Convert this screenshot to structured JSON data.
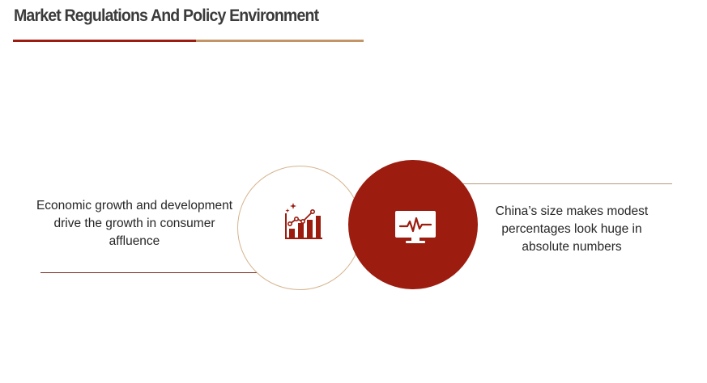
{
  "header": {
    "title": "Market Regulations And Policy Environment"
  },
  "items": [
    {
      "text": "Economic growth and development drive the growth in consumer affluence",
      "icon": "growth-chart-icon"
    },
    {
      "text": "China’s size makes modest percentages look huge in absolute numbers",
      "icon": "monitor-pulse-icon"
    }
  ],
  "colors": {
    "accent_dark_red": "#9c1c0f",
    "accent_tan": "#c49466",
    "circle_outline": "#d6b48e",
    "title_text": "#3b3b3b",
    "body_text": "#262626"
  }
}
